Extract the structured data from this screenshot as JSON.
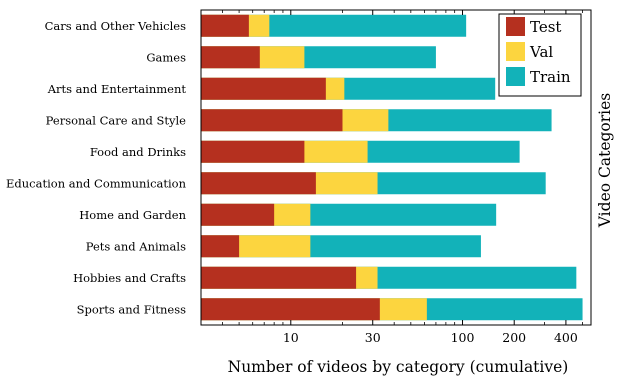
{
  "chart_data": {
    "type": "bar",
    "stacked": true,
    "orientation": "horizontal",
    "cumulative": true,
    "x_scale": "log",
    "xlabel": "Number of videos by category (cumulative)",
    "ylabel": "Video Categories",
    "xlim": [
      3,
      560
    ],
    "xticks": [
      10,
      30,
      100,
      200,
      400
    ],
    "categories": [
      "Cars and Other Vehicles",
      "Games",
      "Arts and Entertainment",
      "Personal Care and Style",
      "Food and Drinks",
      "Education and Communication",
      "Home and Garden",
      "Pets and Animals",
      "Hobbies and Crafts",
      "Sports and Fitness"
    ],
    "series": [
      {
        "name": "Test",
        "color": "#b5301f",
        "values": [
          5.7,
          6.6,
          16,
          20,
          12,
          14,
          8,
          5,
          24,
          33
        ]
      },
      {
        "name": "Val",
        "color": "#fcd53f",
        "values": [
          7.5,
          12,
          20.5,
          37,
          28,
          32,
          13,
          13,
          32,
          62
        ]
      },
      {
        "name": "Train",
        "color": "#12b2b9",
        "values": [
          105,
          70,
          155,
          330,
          215,
          305,
          157,
          128,
          460,
          500
        ]
      }
    ],
    "legend_position": "top-right",
    "grid": false
  }
}
